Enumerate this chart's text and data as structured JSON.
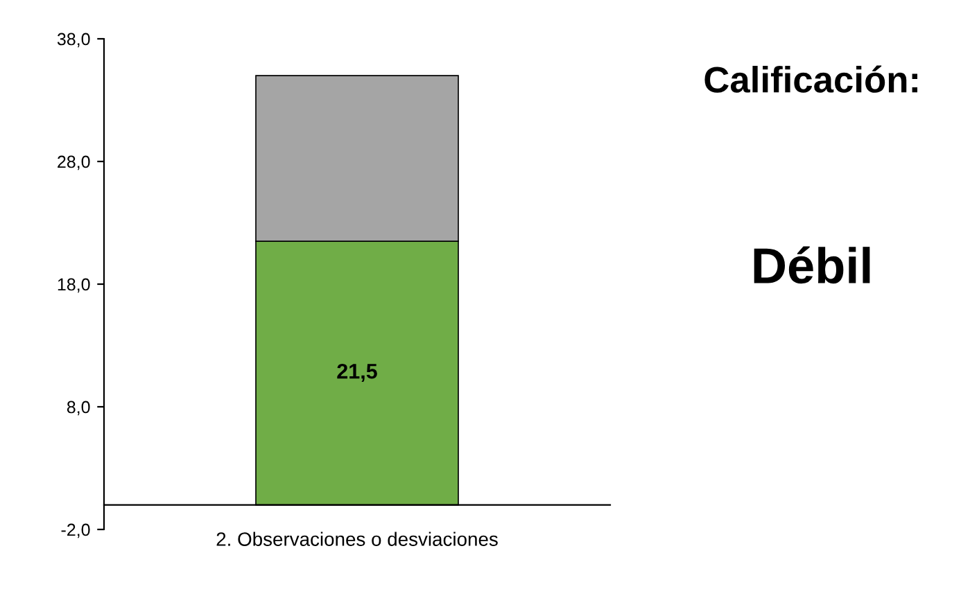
{
  "chart_data": {
    "type": "bar",
    "stacked": true,
    "categories": [
      "2. Observaciones o desviaciones"
    ],
    "series": [
      {
        "color": "#70ad47",
        "values": [
          21.5
        ],
        "value_labels": [
          "21,5"
        ]
      },
      {
        "color": "#a5a5a5",
        "values": [
          13.5
        ]
      }
    ],
    "ylim": [
      -2,
      38
    ],
    "yticks": [
      {
        "value": -2,
        "label": "-2,0"
      },
      {
        "value": 8,
        "label": "8,0"
      },
      {
        "value": 18,
        "label": "18,0"
      },
      {
        "value": 28,
        "label": "28,0"
      },
      {
        "value": 38,
        "label": "38,0"
      }
    ],
    "annotations": [
      "Calificación:",
      "Débil"
    ]
  }
}
